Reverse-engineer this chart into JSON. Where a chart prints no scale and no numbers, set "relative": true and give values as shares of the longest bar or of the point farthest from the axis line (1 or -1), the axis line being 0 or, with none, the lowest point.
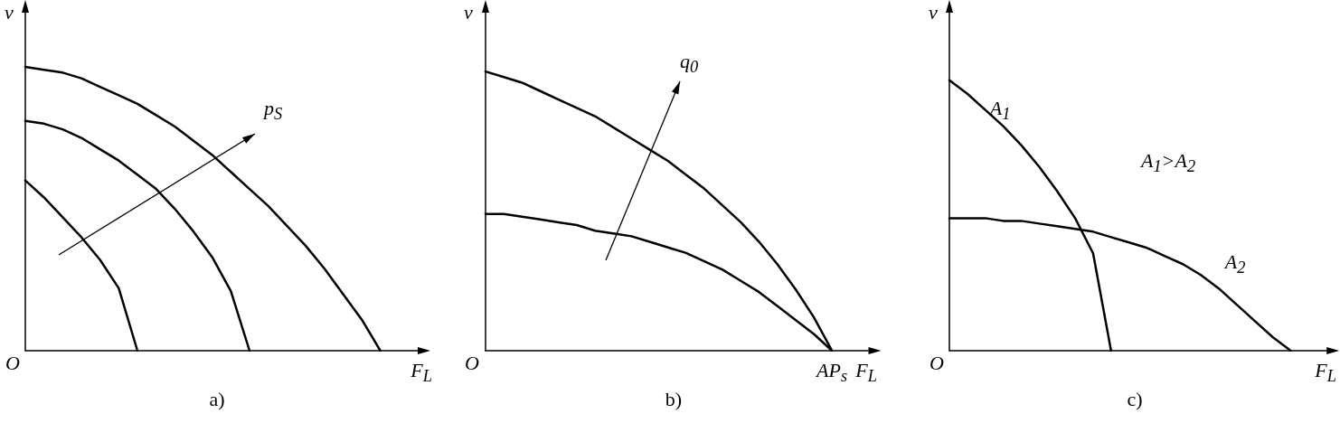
{
  "chart_data": [
    {
      "type": "line",
      "relative": true,
      "xlabel": "F$_{L}$",
      "ylabel": "v",
      "annotations": [
        "O",
        "p$_{S}$",
        "a)"
      ],
      "categories": [
        null,
        null,
        null,
        null,
        null,
        null,
        null,
        null,
        null,
        null,
        null,
        null,
        null,
        null,
        null,
        null,
        null,
        null,
        null,
        null,
        null,
        null
      ],
      "series": [
        {
          "color": "#000000",
          "values": [
            0.6,
            0.54,
            0.47,
            0.4,
            0.32,
            0.22,
            0,
            null,
            null,
            null,
            null,
            null,
            null,
            null,
            null,
            null,
            null,
            null,
            null,
            null,
            null,
            null
          ]
        },
        {
          "color": "#000000",
          "values": [
            0.81,
            0.8,
            0.78,
            0.75,
            0.71,
            0.67,
            0.62,
            0.57,
            0.5,
            0.42,
            0.33,
            0.21,
            0,
            null,
            null,
            null,
            null,
            null,
            null,
            null,
            null,
            null
          ]
        },
        {
          "color": "#000000",
          "values": [
            1,
            0.99,
            0.98,
            0.96,
            0.93,
            0.9,
            0.87,
            0.83,
            0.79,
            0.74,
            0.69,
            0.63,
            0.57,
            0.51,
            0.44,
            0.37,
            0.29,
            0.2,
            0.11,
            0,
            null,
            null
          ]
        }
      ]
    },
    {
      "type": "line",
      "relative": true,
      "xlabel": "F$_{L}$",
      "ylabel": "v",
      "annotations": [
        "O",
        "q$_{0}$",
        "b)",
        "AP$_{s}$"
      ],
      "categories": [
        null,
        null,
        null,
        null,
        null,
        null,
        null,
        null,
        null,
        null,
        null,
        null,
        null,
        null,
        null,
        null,
        null,
        null,
        null,
        null,
        null,
        null
      ],
      "series": [
        {
          "color": "#000000",
          "values": [
            1,
            0.98,
            0.96,
            0.93,
            0.9,
            0.87,
            0.84,
            0.8,
            0.76,
            0.72,
            0.68,
            0.63,
            0.58,
            0.52,
            0.46,
            0.39,
            0.31,
            0.22,
            0.12,
            0,
            null,
            null
          ]
        },
        {
          "color": "#000000",
          "values": [
            0.49,
            0.49,
            0.48,
            0.47,
            0.46,
            0.45,
            0.43,
            0.42,
            0.41,
            0.39,
            0.37,
            0.35,
            0.32,
            0.29,
            0.25,
            0.21,
            0.16,
            0.11,
            0.06,
            0,
            null,
            null
          ]
        }
      ]
    },
    {
      "type": "line",
      "relative": true,
      "xlabel": "F$_{L}$",
      "ylabel": "v",
      "annotations": [
        "O",
        "A$_{1}$>A$_{2}$",
        "c)"
      ],
      "categories": [
        null,
        null,
        null,
        null,
        null,
        null,
        null,
        null,
        null,
        null,
        null,
        null,
        null,
        null,
        null,
        null,
        null,
        null,
        null,
        null,
        null,
        null
      ],
      "series": [
        {
          "name": "A$_{1}$",
          "color": "#000000",
          "values": [
            1,
            0.95,
            0.89,
            0.83,
            0.76,
            0.68,
            0.59,
            0.49,
            0.36,
            0,
            null,
            null,
            null,
            null,
            null,
            null,
            null,
            null,
            null,
            null,
            null,
            null
          ]
        },
        {
          "name": "A$_{2}$",
          "color": "#000000",
          "values": [
            0.49,
            0.49,
            0.49,
            0.48,
            0.48,
            0.47,
            0.46,
            0.45,
            0.44,
            0.42,
            0.4,
            0.38,
            0.35,
            0.32,
            0.28,
            0.23,
            0.17,
            0.11,
            0.05,
            0,
            null,
            null
          ]
        }
      ]
    }
  ]
}
